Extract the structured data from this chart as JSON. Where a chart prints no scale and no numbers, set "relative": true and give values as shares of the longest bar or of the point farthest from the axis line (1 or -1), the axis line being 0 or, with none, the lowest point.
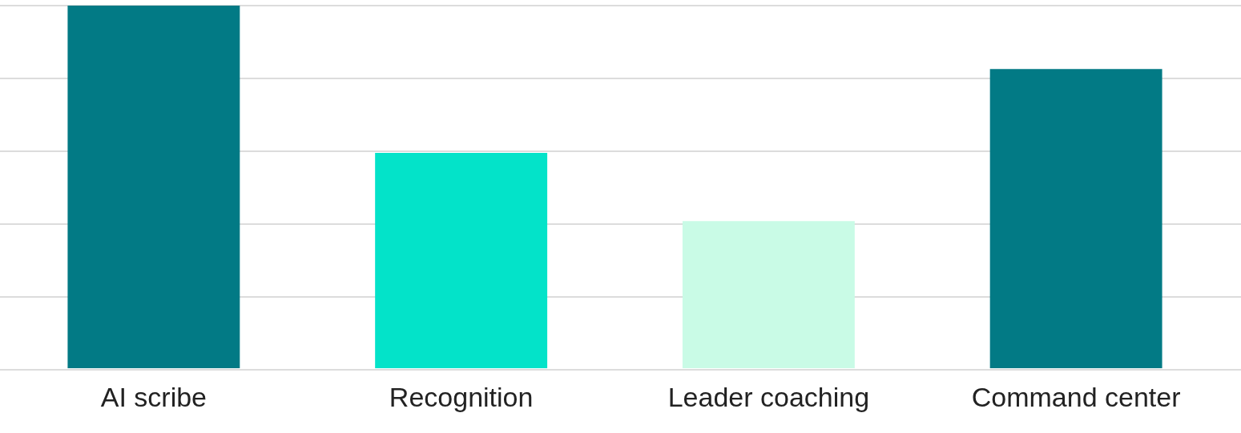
{
  "chart_data": {
    "type": "bar",
    "relative": true,
    "categories": [
      "AI scribe",
      "Recognition",
      "Leader coaching",
      "Command center"
    ],
    "values": [
      1,
      0.594,
      0.406,
      0.825
    ],
    "colors": [
      "#027a85",
      "#03e3c9",
      "#c9fbe6",
      "#027a85"
    ]
  }
}
